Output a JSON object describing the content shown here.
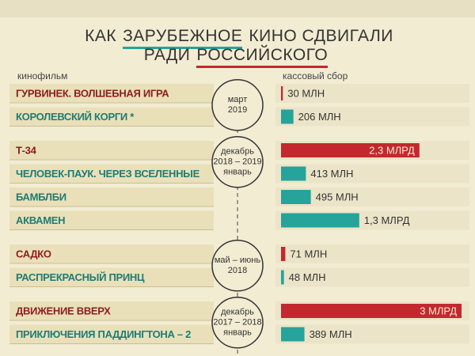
{
  "chart_data": {
    "type": "bar",
    "title": [
      "КАК",
      "ЗАРУБЕЖНОЕ",
      "КИНО СДВИГАЛИ РАДИ",
      "РОССИЙСКОГО"
    ],
    "left_header": "кинофильм",
    "right_header": "кассовый сбор",
    "groups": [
      {
        "period": [
          "март",
          "2019"
        ],
        "categories": [
          "ГУРВИНЕК. ВОЛШЕБНАЯ ИГРА",
          "КОРОЛЕВСКИЙ КОРГИ *"
        ],
        "values": [
          30,
          206
        ],
        "value_labels": [
          "30 МЛН",
          "206 МЛН"
        ],
        "colors": [
          "#c3282e",
          "#26a39a"
        ]
      },
      {
        "period": [
          "декабрь",
          "2018 – 2019",
          "январь"
        ],
        "categories": [
          "Т-34",
          "ЧЕЛОВЕК-ПАУК. ЧЕРЕЗ ВСЕЛЕННЫЕ",
          "БАМБЛБИ",
          "АКВАМЕН"
        ],
        "values": [
          2300,
          413,
          495,
          1300
        ],
        "value_labels": [
          "2,3 МЛРД",
          "413 МЛН",
          "495 МЛН",
          "1,3 МЛРД"
        ],
        "colors": [
          "#c3282e",
          "#26a39a",
          "#26a39a",
          "#26a39a"
        ]
      },
      {
        "period": [
          "май – июнь",
          "2018"
        ],
        "categories": [
          "САДКО",
          "РАСПРЕКРАСНЫЙ ПРИНЦ"
        ],
        "values": [
          71,
          48
        ],
        "value_labels": [
          "71 МЛН",
          "48 МЛН"
        ],
        "colors": [
          "#c3282e",
          "#26a39a"
        ]
      },
      {
        "period": [
          "декабрь",
          "2017 – 2018",
          "январь"
        ],
        "categories": [
          "ДВИЖЕНИЕ ВВЕРХ",
          "ПРИКЛЮЧЕНИЯ ПАДДИНГТОНА – 2"
        ],
        "values": [
          3000,
          389
        ],
        "value_labels": [
          "3 МЛРД",
          "389 МЛН"
        ],
        "colors": [
          "#c3282e",
          "#26a39a"
        ]
      }
    ]
  }
}
